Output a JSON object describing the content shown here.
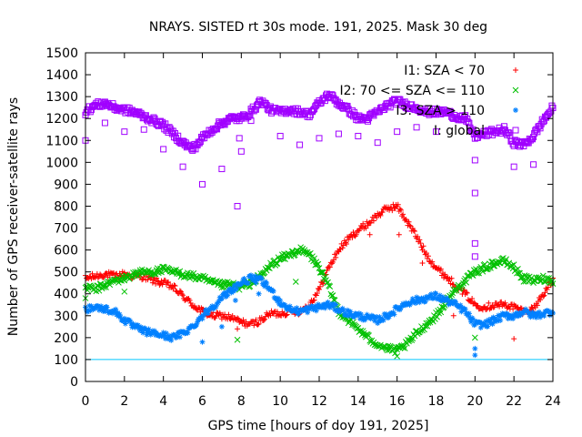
{
  "chart_data": {
    "type": "scatter",
    "title": "NRAYS. SISTED rt 30s mode. 191, 2025. Mask 30 deg",
    "xlabel": "GPS time [hours of doy 191, 2025]",
    "ylabel": "Number of GPS receiver-satellite rays",
    "xlim": [
      0,
      24
    ],
    "ylim": [
      0,
      1500
    ],
    "xticks": [
      "0",
      "2",
      "4",
      "6",
      "8",
      "10",
      "12",
      "14",
      "16",
      "18",
      "20",
      "22",
      "24"
    ],
    "yticks": [
      "0",
      "100",
      "200",
      "300",
      "400",
      "500",
      "600",
      "700",
      "800",
      "900",
      "1000",
      "1100",
      "1200",
      "1300",
      "1400",
      "1500"
    ],
    "grid": false,
    "legend_position": "top-right",
    "reference_line": {
      "y": 100,
      "color": "#00c8ff"
    },
    "series": [
      {
        "name": "I1: SZA < 70",
        "marker": "+",
        "color": "#ff0000",
        "profile_x": [
          0,
          0.5,
          1,
          1.5,
          2,
          2.5,
          3,
          3.5,
          4,
          4.5,
          5,
          5.5,
          6,
          6.5,
          7,
          7.5,
          8,
          8.5,
          9,
          9.5,
          10,
          10.5,
          11,
          11.5,
          12,
          12.5,
          13,
          13.5,
          14,
          14.5,
          15,
          15.5,
          16,
          16.3,
          17,
          17.5,
          18,
          18.5,
          19,
          19.5,
          20,
          20.5,
          21,
          21.5,
          22,
          22.5,
          23,
          23.5,
          24
        ],
        "profile_y": [
          470,
          480,
          490,
          480,
          490,
          480,
          480,
          460,
          450,
          430,
          390,
          350,
          320,
          300,
          300,
          290,
          270,
          260,
          280,
          310,
          310,
          320,
          320,
          350,
          420,
          520,
          600,
          650,
          690,
          720,
          760,
          790,
          800,
          760,
          660,
          580,
          520,
          480,
          440,
          400,
          350,
          340,
          350,
          350,
          340,
          320,
          330,
          400,
          460
        ],
        "outliers": [
          {
            "x": 7.8,
            "y": 240
          },
          {
            "x": 14.6,
            "y": 670
          },
          {
            "x": 16.1,
            "y": 670
          },
          {
            "x": 17.3,
            "y": 540
          },
          {
            "x": 18.9,
            "y": 300
          },
          {
            "x": 22,
            "y": 195
          }
        ]
      },
      {
        "name": "I2: 70 <= SZA <= 110",
        "marker": "x",
        "color": "#00c000",
        "profile_x": [
          0,
          0.5,
          1,
          1.5,
          2,
          2.5,
          3,
          3.5,
          4,
          4.5,
          5,
          5.5,
          6,
          6.5,
          7,
          7.5,
          8,
          8.5,
          9,
          9.5,
          10,
          10.5,
          11,
          11.5,
          12,
          12.5,
          13,
          13.5,
          14,
          14.5,
          15,
          15.5,
          16,
          16.5,
          17,
          17.5,
          18,
          18.5,
          19,
          19.5,
          20,
          20.5,
          21,
          21.5,
          22,
          22.5,
          23,
          23.5,
          24
        ],
        "profile_y": [
          430,
          420,
          440,
          460,
          470,
          490,
          500,
          500,
          510,
          500,
          490,
          480,
          470,
          450,
          440,
          440,
          430,
          450,
          480,
          530,
          560,
          580,
          600,
          580,
          520,
          430,
          320,
          280,
          240,
          200,
          170,
          150,
          140,
          170,
          220,
          260,
          300,
          360,
          420,
          460,
          500,
          520,
          540,
          550,
          520,
          470,
          460,
          470,
          460
        ],
        "outliers": [
          {
            "x": 0,
            "y": 380
          },
          {
            "x": 2,
            "y": 410
          },
          {
            "x": 7.8,
            "y": 190
          },
          {
            "x": 10.8,
            "y": 455
          },
          {
            "x": 16,
            "y": 115
          },
          {
            "x": 20,
            "y": 200
          }
        ]
      },
      {
        "name": "I3: SZA > 110",
        "marker": "*",
        "color": "#0080ff",
        "profile_x": [
          0,
          0.5,
          1,
          1.5,
          2,
          2.5,
          3,
          3.5,
          4,
          4.5,
          5,
          5.5,
          6,
          6.5,
          7,
          7.5,
          8,
          8.5,
          9,
          9.5,
          10,
          10.5,
          11,
          11.5,
          12,
          12.5,
          13,
          13.5,
          14,
          14.5,
          15,
          15.5,
          16,
          16.5,
          17,
          17.5,
          18,
          18.5,
          19,
          19.5,
          20,
          20.5,
          21,
          21.5,
          22,
          22.5,
          23,
          23.5,
          24
        ],
        "profile_y": [
          330,
          340,
          330,
          320,
          280,
          250,
          230,
          220,
          210,
          200,
          220,
          250,
          300,
          340,
          380,
          420,
          450,
          470,
          460,
          420,
          360,
          330,
          320,
          330,
          340,
          350,
          330,
          310,
          300,
          290,
          280,
          300,
          330,
          360,
          370,
          380,
          390,
          370,
          350,
          320,
          260,
          260,
          280,
          300,
          300,
          320,
          300,
          310,
          320
        ],
        "outliers": [
          {
            "x": 6,
            "y": 180
          },
          {
            "x": 7,
            "y": 250
          },
          {
            "x": 7.7,
            "y": 370
          },
          {
            "x": 8.9,
            "y": 400
          },
          {
            "x": 20,
            "y": 120
          },
          {
            "x": 20,
            "y": 150
          }
        ]
      },
      {
        "name": "I: global",
        "marker": "square",
        "color": "#a000ff",
        "profile_x": [
          0,
          0.5,
          1,
          1.5,
          2,
          2.5,
          3,
          3.5,
          4,
          4.5,
          5,
          5.5,
          6,
          6.5,
          7,
          7.5,
          8,
          8.5,
          9,
          9.5,
          10,
          10.5,
          11,
          11.5,
          12,
          12.5,
          13,
          13.5,
          14,
          14.5,
          15,
          15.5,
          16,
          16.5,
          17,
          17.5,
          18,
          18.5,
          19,
          19.5,
          20,
          20.5,
          21,
          21.5,
          22,
          22.5,
          23,
          23.5,
          24
        ],
        "profile_y": [
          1230,
          1260,
          1270,
          1250,
          1240,
          1230,
          1210,
          1190,
          1170,
          1130,
          1090,
          1060,
          1110,
          1150,
          1180,
          1200,
          1200,
          1230,
          1280,
          1240,
          1230,
          1240,
          1230,
          1220,
          1270,
          1310,
          1270,
          1240,
          1200,
          1200,
          1230,
          1260,
          1280,
          1260,
          1250,
          1230,
          1230,
          1230,
          1210,
          1200,
          1120,
          1130,
          1140,
          1150,
          1090,
          1080,
          1120,
          1190,
          1250
        ],
        "outliers": [
          {
            "x": 0,
            "y": 1100
          },
          {
            "x": 1,
            "y": 1180
          },
          {
            "x": 2,
            "y": 1140
          },
          {
            "x": 3,
            "y": 1150
          },
          {
            "x": 4,
            "y": 1060
          },
          {
            "x": 5,
            "y": 980
          },
          {
            "x": 6,
            "y": 900
          },
          {
            "x": 7,
            "y": 970
          },
          {
            "x": 7.8,
            "y": 800
          },
          {
            "x": 7.9,
            "y": 1110
          },
          {
            "x": 8,
            "y": 1050
          },
          {
            "x": 8.5,
            "y": 1190
          },
          {
            "x": 10,
            "y": 1120
          },
          {
            "x": 11,
            "y": 1080
          },
          {
            "x": 12,
            "y": 1110
          },
          {
            "x": 13,
            "y": 1130
          },
          {
            "x": 14,
            "y": 1120
          },
          {
            "x": 15,
            "y": 1090
          },
          {
            "x": 16,
            "y": 1140
          },
          {
            "x": 17,
            "y": 1160
          },
          {
            "x": 18,
            "y": 1140
          },
          {
            "x": 20,
            "y": 1010
          },
          {
            "x": 20,
            "y": 860
          },
          {
            "x": 20,
            "y": 630
          },
          {
            "x": 20,
            "y": 570
          },
          {
            "x": 22,
            "y": 980
          },
          {
            "x": 23,
            "y": 990
          }
        ]
      }
    ]
  }
}
